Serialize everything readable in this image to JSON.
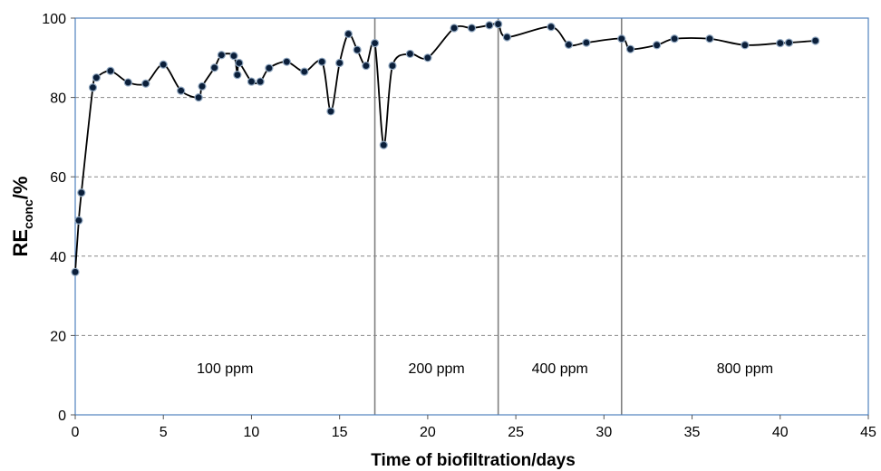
{
  "chart_data": {
    "type": "line",
    "xlabel": "Time of biofiltration/days",
    "ylabel_main": "RE",
    "ylabel_sub": "conc",
    "ylabel_tail": "/%",
    "xlim": [
      0,
      45
    ],
    "ylim": [
      0,
      100
    ],
    "x_ticks": [
      0,
      5,
      10,
      15,
      20,
      25,
      30,
      35,
      40,
      45
    ],
    "y_ticks": [
      0,
      20,
      40,
      60,
      80,
      100
    ],
    "grid": "horizontal dashed",
    "series": [
      {
        "x": [
          0,
          0.2,
          0.35,
          1.0,
          1.2,
          2.0,
          3.0,
          4.0,
          5.0,
          6.0,
          7.0,
          7.2,
          7.9,
          8.3,
          9.0,
          9.2,
          9.3,
          10.0,
          10.5,
          11.0,
          12.0,
          13.0,
          14.0,
          14.5,
          15.0,
          15.5,
          16.0,
          16.5,
          17.0,
          17.5,
          18.0,
          19.0,
          20.0,
          21.5,
          22.5,
          23.5,
          24.0,
          24.5,
          27.0,
          28.0,
          29.0,
          31.0,
          31.5,
          33.0,
          34.0,
          36.0,
          38.0,
          40.0,
          40.5,
          42.0
        ],
        "y": [
          36,
          49,
          56,
          82.5,
          85,
          86.7,
          83.8,
          83.5,
          88.3,
          81.7,
          80,
          82.8,
          87.5,
          90.7,
          90.5,
          85.7,
          88.7,
          84,
          84,
          87.4,
          89,
          86.5,
          89,
          76.5,
          88.7,
          96,
          92,
          88,
          93.7,
          68,
          88,
          91,
          90,
          97.5,
          97.5,
          98.2,
          98.5,
          95.2,
          97.8,
          93.3,
          93.8,
          94.8,
          92.2,
          93.2,
          94.8,
          94.8,
          93.2,
          93.7,
          93.8,
          94.3
        ]
      }
    ],
    "phase_boundaries": [
      17,
      24,
      31
    ],
    "phases": [
      {
        "label": "100 ppm",
        "x": 8.5
      },
      {
        "label": "200 ppm",
        "x": 20.5
      },
      {
        "label": "400 ppm",
        "x": 27.5
      },
      {
        "label": "800 ppm",
        "x": 38
      }
    ],
    "colors": {
      "line": "#000000",
      "marker_fill": "#0b1f3a",
      "marker_edge": "#8fa6bf",
      "grid": "#888888",
      "frame": "#4f81bd",
      "divider": "#7f7f7f"
    }
  }
}
